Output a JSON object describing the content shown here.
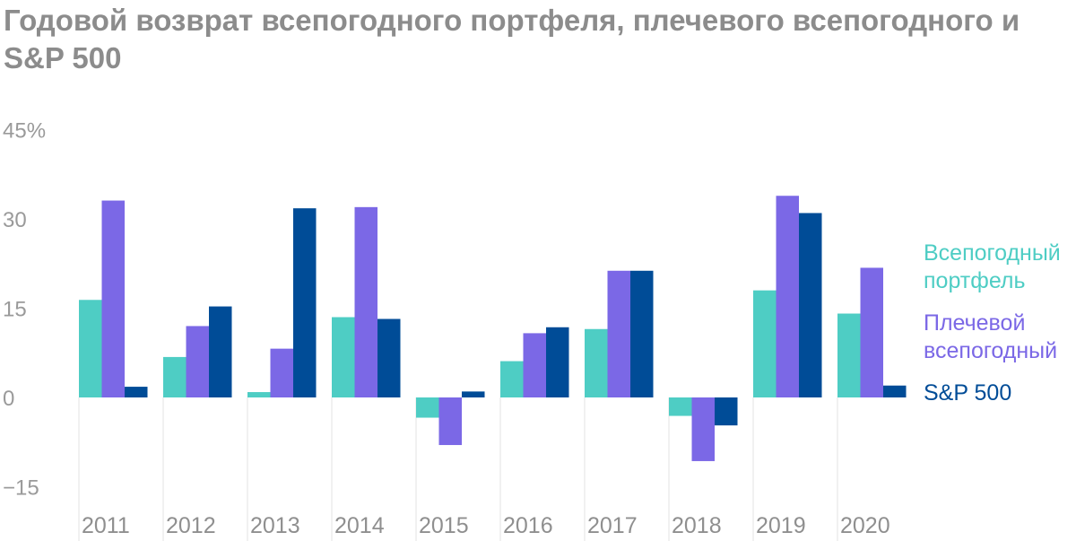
{
  "chart_data": {
    "type": "bar",
    "title": "Годовой возврат всепогодного портфеля, плечевого всепогодного и S&P 500",
    "categories": [
      "2011",
      "2012",
      "2013",
      "2014",
      "2015",
      "2016",
      "2017",
      "2018",
      "2019",
      "2020"
    ],
    "y_ticks": [
      {
        "value": 45,
        "label": "45%"
      },
      {
        "value": 30,
        "label": "30"
      },
      {
        "value": 15,
        "label": "15"
      },
      {
        "value": 0,
        "label": "0"
      },
      {
        "value": -15,
        "label": "−15"
      }
    ],
    "ylim": [
      -20,
      45
    ],
    "series": [
      {
        "name": "Всепогодный портфель",
        "legend_lines": [
          "Всепогодный",
          "портфель"
        ],
        "color": "#4ecdc4",
        "values": [
          16.4,
          6.8,
          0.9,
          13.5,
          -3.4,
          6.1,
          11.5,
          -3.1,
          18.0,
          14.1
        ]
      },
      {
        "name": "Плечевой всепогодный",
        "legend_lines": [
          "Плечевой",
          "всепогодный"
        ],
        "color": "#7b68e6",
        "values": [
          33.1,
          12.0,
          8.2,
          32.0,
          -8.0,
          10.8,
          21.3,
          -10.7,
          33.9,
          21.8
        ]
      },
      {
        "name": "S&P 500",
        "legend_lines": [
          "S&P 500"
        ],
        "color": "#004c97",
        "values": [
          1.8,
          15.3,
          31.8,
          13.2,
          1.0,
          11.8,
          21.3,
          -4.7,
          31.0,
          2.0
        ]
      }
    ],
    "grid": false,
    "legend_position": "right"
  }
}
